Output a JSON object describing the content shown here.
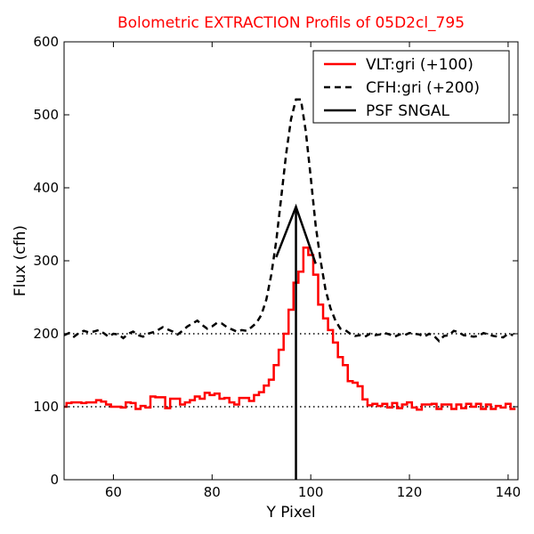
{
  "chart_data": {
    "type": "line",
    "title": "Bolometric EXTRACTION Profils of 05D2cl_795",
    "title_color": "#ff0000",
    "xlabel": "Y Pixel",
    "ylabel": "Flux (cfh)",
    "xlim": [
      50,
      142
    ],
    "ylim": [
      0,
      600
    ],
    "xticks": [
      60,
      80,
      100,
      120,
      140
    ],
    "yticks": [
      0,
      100,
      200,
      300,
      400,
      500,
      600
    ],
    "grid": false,
    "legend_position": "top-right",
    "reference_lines": [
      {
        "y": 100,
        "style": "dotted",
        "color": "#000000"
      },
      {
        "y": 200,
        "style": "dotted",
        "color": "#000000"
      }
    ],
    "series": [
      {
        "name": "VLT:gri (+100)",
        "color": "#ff0000",
        "style": "steps-solid",
        "x": [
          50,
          51,
          52,
          53,
          54,
          55,
          56,
          57,
          58,
          59,
          60,
          61,
          62,
          63,
          64,
          65,
          66,
          67,
          68,
          69,
          70,
          71,
          72,
          73,
          74,
          75,
          76,
          77,
          78,
          79,
          80,
          81,
          82,
          83,
          84,
          85,
          86,
          87,
          88,
          89,
          90,
          91,
          92,
          93,
          94,
          95,
          96,
          97,
          98,
          99,
          100,
          101,
          102,
          103,
          104,
          105,
          106,
          107,
          108,
          109,
          110,
          111,
          112,
          113,
          114,
          115,
          116,
          117,
          118,
          119,
          120,
          121,
          122,
          123,
          124,
          125,
          126,
          127,
          128,
          129,
          130,
          131,
          132,
          133,
          134,
          135,
          136,
          137,
          138,
          139,
          140,
          141
        ],
        "y": [
          100,
          105,
          106,
          106,
          105,
          106,
          106,
          109,
          107,
          103,
          100,
          100,
          99,
          106,
          105,
          97,
          101,
          99,
          114,
          113,
          113,
          98,
          111,
          111,
          103,
          106,
          109,
          114,
          111,
          119,
          116,
          118,
          111,
          112,
          106,
          103,
          112,
          112,
          108,
          116,
          120,
          129,
          137,
          157,
          178,
          200,
          233,
          270,
          285,
          318,
          308,
          281,
          240,
          221,
          205,
          188,
          168,
          157,
          135,
          133,
          128,
          110,
          102,
          104,
          101,
          104,
          99,
          105,
          98,
          103,
          106,
          99,
          96,
          103,
          103,
          104,
          97,
          103,
          103,
          97,
          103,
          98,
          104,
          100,
          104,
          97,
          103,
          97,
          101,
          99,
          104,
          97
        ]
      },
      {
        "name": "CFH:gri (+200)",
        "color": "#000000",
        "style": "dashed",
        "x": [
          50,
          51,
          52,
          53,
          54,
          55,
          56,
          57,
          58,
          59,
          60,
          61,
          62,
          63,
          64,
          65,
          66,
          67,
          68,
          69,
          70,
          71,
          72,
          73,
          74,
          75,
          76,
          77,
          78,
          79,
          80,
          81,
          82,
          83,
          84,
          85,
          86,
          87,
          88,
          89,
          90,
          91,
          92,
          93,
          94,
          95,
          96,
          97,
          98,
          99,
          100,
          101,
          102,
          103,
          104,
          105,
          106,
          107,
          108,
          109,
          110,
          111,
          112,
          113,
          114,
          115,
          116,
          117,
          118,
          119,
          120,
          121,
          122,
          123,
          124,
          125,
          126,
          127,
          128,
          129,
          130,
          131,
          132,
          133,
          134,
          135,
          136,
          137,
          138,
          139,
          140,
          141
        ],
        "y": [
          198,
          201,
          196,
          201,
          204,
          202,
          203,
          205,
          201,
          196,
          200,
          199,
          194,
          200,
          203,
          198,
          196,
          200,
          202,
          205,
          209,
          206,
          203,
          199,
          204,
          210,
          214,
          218,
          212,
          207,
          210,
          215,
          214,
          209,
          206,
          203,
          205,
          204,
          209,
          215,
          226,
          247,
          281,
          327,
          386,
          446,
          494,
          521,
          521,
          477,
          414,
          348,
          300,
          260,
          235,
          218,
          207,
          205,
          200,
          197,
          198,
          196,
          200,
          198,
          199,
          201,
          199,
          196,
          199,
          198,
          201,
          200,
          199,
          196,
          200,
          197,
          190,
          197,
          198,
          204,
          202,
          198,
          197,
          196,
          197,
          201,
          199,
          197,
          196,
          195,
          200,
          198
        ]
      },
      {
        "name": "PSF SNGAL",
        "color": "#000000",
        "style": "solid",
        "x": [
          93,
          97,
          101
        ],
        "y": [
          305,
          374,
          296
        ]
      }
    ],
    "vertical_line": {
      "x": 97,
      "y_from": 0,
      "y_to": 374,
      "color": "#000000"
    }
  }
}
